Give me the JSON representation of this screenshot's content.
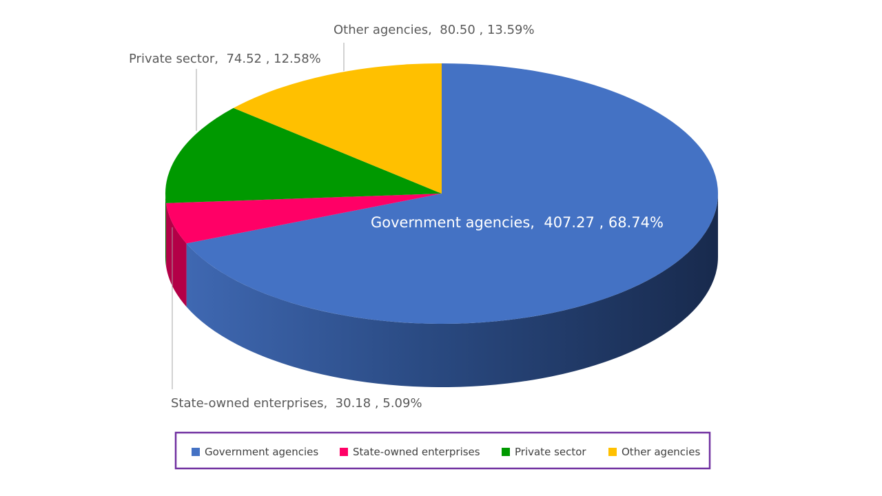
{
  "chart_data": {
    "type": "pie",
    "variant": "3d",
    "slices": [
      {
        "name": "Government agencies",
        "value": 407.27,
        "percent_label": "68.74%",
        "color": "#4472C4"
      },
      {
        "name": "State-owned enterprises",
        "value": 30.18,
        "percent_label": "5.09%",
        "color": "#FF0066"
      },
      {
        "name": "Private sector",
        "value": 74.52,
        "percent_label": "12.58%",
        "color": "#009900"
      },
      {
        "name": "Other agencies",
        "value": 80.5,
        "percent_label": "13.59%",
        "color": "#FFC000"
      }
    ],
    "data_labels": [
      "Government agencies,  407.27 , 68.74%",
      "State-owned enterprises,  30.18 , 5.09%",
      "Private sector,  74.52 , 12.58%",
      "Other agencies,  80.50 , 13.59%"
    ],
    "legend": {
      "position": "bottom",
      "border_color": "#7030A0",
      "items": [
        "Government agencies",
        "State-owned enterprises",
        "Private sector",
        "Other agencies"
      ]
    }
  }
}
